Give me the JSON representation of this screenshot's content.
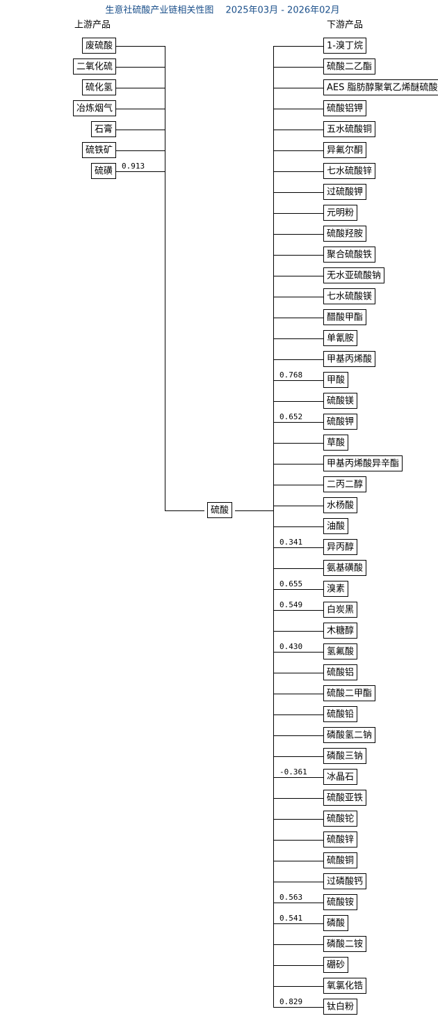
{
  "title": "生意社硫酸产业链相关性图　 2025年03月 - 2026年02月",
  "upstream_heading": "上游产品",
  "downstream_heading": "下游产品",
  "center": "硫酸",
  "upstream": [
    {
      "label": "废硫酸"
    },
    {
      "label": "二氧化硫"
    },
    {
      "label": "硫化氢"
    },
    {
      "label": "冶炼烟气"
    },
    {
      "label": "石膏"
    },
    {
      "label": "硫铁矿"
    },
    {
      "label": "硫磺",
      "value": "0.913"
    }
  ],
  "downstream": [
    {
      "label": "1-溴丁烷"
    },
    {
      "label": "硫酸二乙酯"
    },
    {
      "label": "AES 脂肪醇聚氧乙烯醚硫酸"
    },
    {
      "label": "硫酸铝钾"
    },
    {
      "label": "五水硫酸铜"
    },
    {
      "label": "异氟尔酮"
    },
    {
      "label": "七水硫酸锌"
    },
    {
      "label": "过硫酸钾"
    },
    {
      "label": "元明粉"
    },
    {
      "label": "硫酸羟胺"
    },
    {
      "label": "聚合硫酸铁"
    },
    {
      "label": "无水亚硫酸钠"
    },
    {
      "label": "七水硫酸镁"
    },
    {
      "label": "醋酸甲酯"
    },
    {
      "label": "单氰胺"
    },
    {
      "label": "甲基丙烯酸"
    },
    {
      "label": "甲酸",
      "value": "0.768"
    },
    {
      "label": "硫酸镁"
    },
    {
      "label": "硫酸钾",
      "value": "0.652"
    },
    {
      "label": "草酸"
    },
    {
      "label": "甲基丙烯酸异辛酯"
    },
    {
      "label": "二丙二醇"
    },
    {
      "label": "水杨酸"
    },
    {
      "label": "油酸"
    },
    {
      "label": "异丙醇",
      "value": "0.341"
    },
    {
      "label": "氨基磺酸"
    },
    {
      "label": "溴素",
      "value": "0.655"
    },
    {
      "label": "白炭黑",
      "value": "0.549"
    },
    {
      "label": "木糖醇"
    },
    {
      "label": "氢氟酸",
      "value": "0.430"
    },
    {
      "label": "硫酸铝"
    },
    {
      "label": "硫酸二甲酯"
    },
    {
      "label": "硫酸铅"
    },
    {
      "label": "磷酸氢二钠"
    },
    {
      "label": "磷酸三钠"
    },
    {
      "label": "冰晶石",
      "value": "-0.361"
    },
    {
      "label": "硫酸亚铁"
    },
    {
      "label": "硫酸铊"
    },
    {
      "label": "硫酸锌"
    },
    {
      "label": "硫酸铜"
    },
    {
      "label": "过磷酸钙"
    },
    {
      "label": "硫酸铵",
      "value": "0.563"
    },
    {
      "label": "磷酸",
      "value": "0.541"
    },
    {
      "label": "磷酸二铵"
    },
    {
      "label": "硼砂"
    },
    {
      "label": "氧氯化锆"
    },
    {
      "label": "钛白粉",
      "value": "0.829"
    }
  ]
}
